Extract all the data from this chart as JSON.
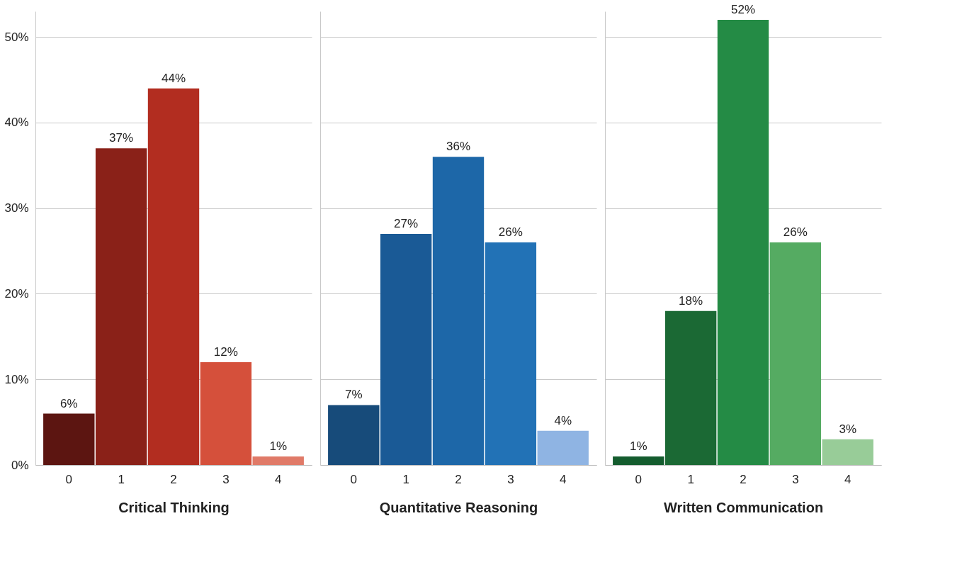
{
  "chart_data": [
    {
      "type": "bar",
      "xlabel": "Critical Thinking",
      "categories": [
        "0",
        "1",
        "2",
        "3",
        "4"
      ],
      "values": [
        6,
        37,
        44,
        12,
        1
      ],
      "colors": [
        "#5c1511",
        "#8a2118",
        "#b22d20",
        "#d5503b",
        "#e07a68"
      ],
      "value_labels": [
        "6%",
        "37%",
        "44%",
        "12%",
        "1%"
      ],
      "ylim": [
        0,
        53
      ],
      "yticks": [
        {
          "value": 0,
          "label": "0%"
        },
        {
          "value": 10,
          "label": "10%"
        },
        {
          "value": 20,
          "label": "20%"
        },
        {
          "value": 30,
          "label": "30%"
        },
        {
          "value": 40,
          "label": "40%"
        },
        {
          "value": 50,
          "label": "50%"
        }
      ],
      "grid": "y"
    },
    {
      "type": "bar",
      "xlabel": "Quantitative Reasoning",
      "categories": [
        "0",
        "1",
        "2",
        "3",
        "4"
      ],
      "values": [
        7,
        27,
        36,
        26,
        4
      ],
      "colors": [
        "#174b7a",
        "#1a5a96",
        "#1d67a8",
        "#2272b6",
        "#8fb4e3"
      ],
      "value_labels": [
        "7%",
        "27%",
        "36%",
        "26%",
        "4%"
      ],
      "ylim": [
        0,
        53
      ],
      "yticks": [
        0,
        10,
        20,
        30,
        40,
        50
      ],
      "grid": "y",
      "tick_labels": "x"
    },
    {
      "type": "bar",
      "xlabel": "Written Communication",
      "categories": [
        "0",
        "1",
        "2",
        "3",
        "4"
      ],
      "values": [
        1,
        18,
        52,
        26,
        3
      ],
      "colors": [
        "#145c2e",
        "#1b6934",
        "#248b45",
        "#55ab62",
        "#98cc98"
      ],
      "value_labels": [
        "1%",
        "18%",
        "52%",
        "26%",
        "3%"
      ],
      "ylim": [
        0,
        53
      ],
      "yticks": [
        0,
        10,
        20,
        30,
        40,
        50
      ],
      "grid": "y",
      "tick_labels": "x"
    }
  ]
}
